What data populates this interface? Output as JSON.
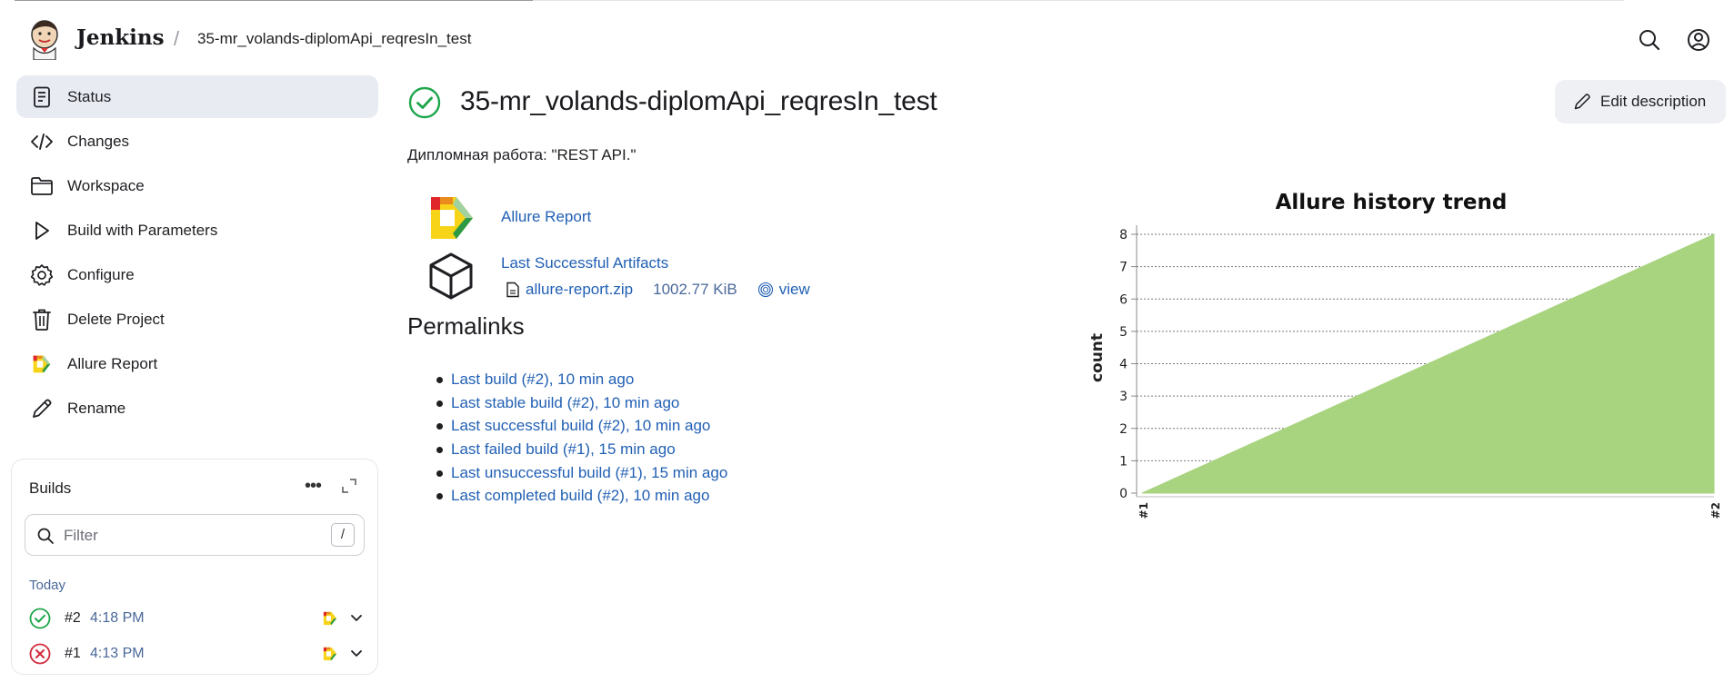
{
  "header": {
    "brand": "Jenkins",
    "breadcrumb_separator": "/",
    "breadcrumb_job": "35-mr_volands-diplomApi_reqresIn_test",
    "icons": [
      "search-icon",
      "user-icon"
    ]
  },
  "sidebar": {
    "items": [
      {
        "label": "Status",
        "icon": "document-icon",
        "active": true
      },
      {
        "label": "Changes",
        "icon": "code-icon"
      },
      {
        "label": "Workspace",
        "icon": "folder-icon"
      },
      {
        "label": "Build with Parameters",
        "icon": "play-icon"
      },
      {
        "label": "Configure",
        "icon": "gear-icon"
      },
      {
        "label": "Delete Project",
        "icon": "trash-icon"
      },
      {
        "label": "Allure Report",
        "icon": "allure-icon"
      },
      {
        "label": "Rename",
        "icon": "pencil-icon"
      }
    ]
  },
  "builds": {
    "title": "Builds",
    "more": "•••",
    "filter_placeholder": "Filter",
    "filter_shortcut": "/",
    "group": "Today",
    "rows": [
      {
        "number": "#2",
        "time": "4:18 PM",
        "status": "success"
      },
      {
        "number": "#1",
        "time": "4:13 PM",
        "status": "failed"
      }
    ]
  },
  "main": {
    "title": "35-mr_volands-diplomApi_reqresIn_test",
    "edit_description": "Edit description",
    "description": "Дипломная работа: \"REST API.\"",
    "allure_report": "Allure Report",
    "last_successful_artifacts": "Last Successful Artifacts",
    "artifact": {
      "name": "allure-report.zip",
      "size": "1002.77 KiB",
      "view": "view"
    },
    "permalinks_title": "Permalinks",
    "permalinks": [
      "Last build (#2), 10 min ago",
      "Last stable build (#2), 10 min ago",
      "Last successful build (#2), 10 min ago",
      "Last failed build (#1), 15 min ago",
      "Last unsuccessful build (#1), 15 min ago",
      "Last completed build (#2), 10 min ago"
    ]
  },
  "colors": {
    "success": "#1ea64b",
    "failed": "#d2283c",
    "link": "#2260b4",
    "chart_fill": "#a8d47f"
  },
  "chart_data": {
    "type": "area",
    "title": "Allure history trend",
    "ylabel": "count",
    "categories": [
      "#1",
      "#2"
    ],
    "series": [
      {
        "values": [
          0,
          8
        ]
      }
    ],
    "ylim": [
      0,
      8
    ],
    "yticks": [
      0,
      1,
      2,
      3,
      4,
      5,
      6,
      7,
      8
    ],
    "grid": true
  }
}
